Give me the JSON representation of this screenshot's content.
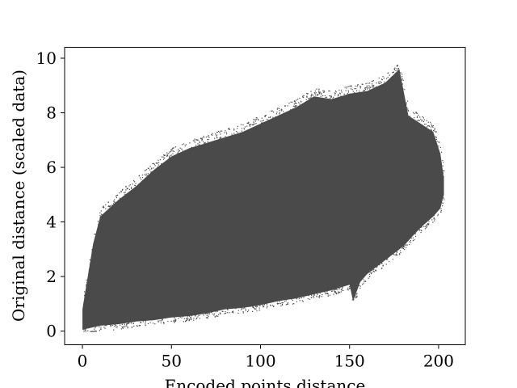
{
  "chart_data": {
    "type": "scatter",
    "title": "",
    "xlabel": "Encoded points distance",
    "ylabel": "Original distance (scaled data)",
    "xlim": [
      -10,
      215
    ],
    "ylim": [
      -0.5,
      10.4
    ],
    "xticks": [
      0,
      50,
      100,
      150,
      200
    ],
    "yticks": [
      0,
      2,
      4,
      6,
      8,
      10
    ],
    "xtick_labels": [
      "0",
      "50",
      "100",
      "150",
      "200"
    ],
    "ytick_labels": [
      "0",
      "2",
      "4",
      "6",
      "8",
      "10"
    ],
    "grid": false,
    "legend": "none",
    "marker_color": "#4a4a4a",
    "cloud_upper_envelope": [
      {
        "x": 0,
        "y": 0.8
      },
      {
        "x": 3,
        "y": 2.0
      },
      {
        "x": 6,
        "y": 3.2
      },
      {
        "x": 10,
        "y": 4.2
      },
      {
        "x": 20,
        "y": 4.8
      },
      {
        "x": 30,
        "y": 5.3
      },
      {
        "x": 40,
        "y": 5.9
      },
      {
        "x": 50,
        "y": 6.4
      },
      {
        "x": 60,
        "y": 6.7
      },
      {
        "x": 70,
        "y": 6.9
      },
      {
        "x": 80,
        "y": 7.1
      },
      {
        "x": 90,
        "y": 7.3
      },
      {
        "x": 100,
        "y": 7.6
      },
      {
        "x": 110,
        "y": 7.9
      },
      {
        "x": 120,
        "y": 8.2
      },
      {
        "x": 130,
        "y": 8.6
      },
      {
        "x": 140,
        "y": 8.5
      },
      {
        "x": 150,
        "y": 8.7
      },
      {
        "x": 160,
        "y": 8.8
      },
      {
        "x": 170,
        "y": 9.1
      },
      {
        "x": 178,
        "y": 9.6
      },
      {
        "x": 183,
        "y": 7.9
      },
      {
        "x": 190,
        "y": 7.6
      },
      {
        "x": 197,
        "y": 7.3
      },
      {
        "x": 201,
        "y": 6.5
      },
      {
        "x": 203,
        "y": 5.6
      }
    ],
    "cloud_lower_envelope": [
      {
        "x": 0,
        "y": 0.05
      },
      {
        "x": 10,
        "y": 0.2
      },
      {
        "x": 20,
        "y": 0.25
      },
      {
        "x": 30,
        "y": 0.35
      },
      {
        "x": 40,
        "y": 0.4
      },
      {
        "x": 50,
        "y": 0.5
      },
      {
        "x": 60,
        "y": 0.55
      },
      {
        "x": 70,
        "y": 0.65
      },
      {
        "x": 80,
        "y": 0.8
      },
      {
        "x": 90,
        "y": 0.85
      },
      {
        "x": 100,
        "y": 0.95
      },
      {
        "x": 110,
        "y": 1.1
      },
      {
        "x": 120,
        "y": 1.2
      },
      {
        "x": 130,
        "y": 1.35
      },
      {
        "x": 140,
        "y": 1.5
      },
      {
        "x": 150,
        "y": 1.7
      },
      {
        "x": 152,
        "y": 1.1
      },
      {
        "x": 156,
        "y": 1.8
      },
      {
        "x": 160,
        "y": 2.1
      },
      {
        "x": 170,
        "y": 2.6
      },
      {
        "x": 180,
        "y": 3.1
      },
      {
        "x": 190,
        "y": 3.8
      },
      {
        "x": 197,
        "y": 4.2
      },
      {
        "x": 201,
        "y": 4.5
      },
      {
        "x": 203,
        "y": 5.0
      }
    ]
  }
}
